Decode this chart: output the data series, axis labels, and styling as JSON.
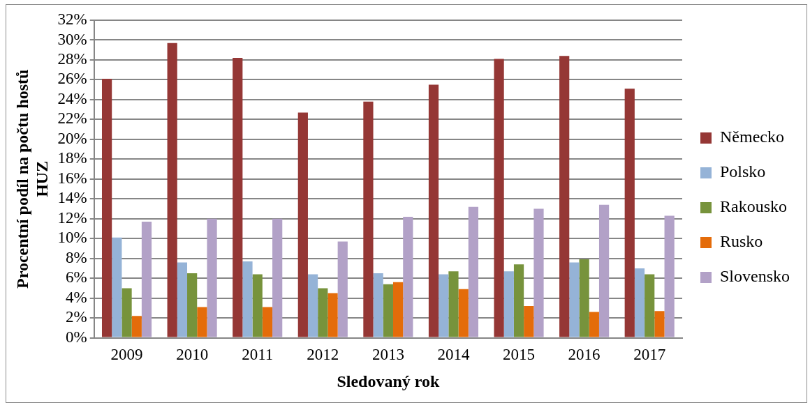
{
  "chart_data": {
    "type": "bar",
    "xlabel": "Sledovaný rok",
    "ylabel": "Procentní podíl na počtu hostů HUZ",
    "categories": [
      "2009",
      "2010",
      "2011",
      "2012",
      "2013",
      "2014",
      "2015",
      "2016",
      "2017"
    ],
    "series": [
      {
        "name": "Německo",
        "color": "#953735",
        "values": [
          26.1,
          29.7,
          28.2,
          22.7,
          23.8,
          25.5,
          28.1,
          28.4,
          25.1
        ]
      },
      {
        "name": "Polsko",
        "color": "#95b3d7",
        "values": [
          10.1,
          7.6,
          7.7,
          6.4,
          6.5,
          6.4,
          6.7,
          7.6,
          7.0
        ]
      },
      {
        "name": "Rakousko",
        "color": "#77933c",
        "values": [
          5.0,
          6.5,
          6.4,
          5.0,
          5.4,
          6.7,
          7.4,
          7.9,
          6.4
        ]
      },
      {
        "name": "Rusko",
        "color": "#e46c0a",
        "values": [
          2.2,
          3.1,
          3.1,
          4.5,
          5.6,
          4.9,
          3.2,
          2.6,
          2.7
        ]
      },
      {
        "name": "Slovensko",
        "color": "#b2a1c7",
        "values": [
          11.7,
          12.0,
          12.0,
          9.7,
          12.2,
          13.2,
          13.0,
          13.4,
          12.3
        ]
      }
    ],
    "ylim": [
      0,
      32
    ],
    "yticks": [
      {
        "value": 0,
        "label": "0%"
      },
      {
        "value": 2,
        "label": "2%"
      },
      {
        "value": 4,
        "label": "4%"
      },
      {
        "value": 6,
        "label": "6%"
      },
      {
        "value": 8,
        "label": "8%"
      },
      {
        "value": 10,
        "label": "10%"
      },
      {
        "value": 12,
        "label": "12%"
      },
      {
        "value": 14,
        "label": "14%"
      },
      {
        "value": 16,
        "label": "16%"
      },
      {
        "value": 18,
        "label": "18%"
      },
      {
        "value": 20,
        "label": "20%"
      },
      {
        "value": 22,
        "label": "22%"
      },
      {
        "value": 24,
        "label": "24%"
      },
      {
        "value": 26,
        "label": "26%"
      },
      {
        "value": 28,
        "label": "28%"
      },
      {
        "value": 30,
        "label": "30%"
      },
      {
        "value": 32,
        "label": "32%"
      }
    ],
    "grid": "y",
    "legend": "right"
  }
}
